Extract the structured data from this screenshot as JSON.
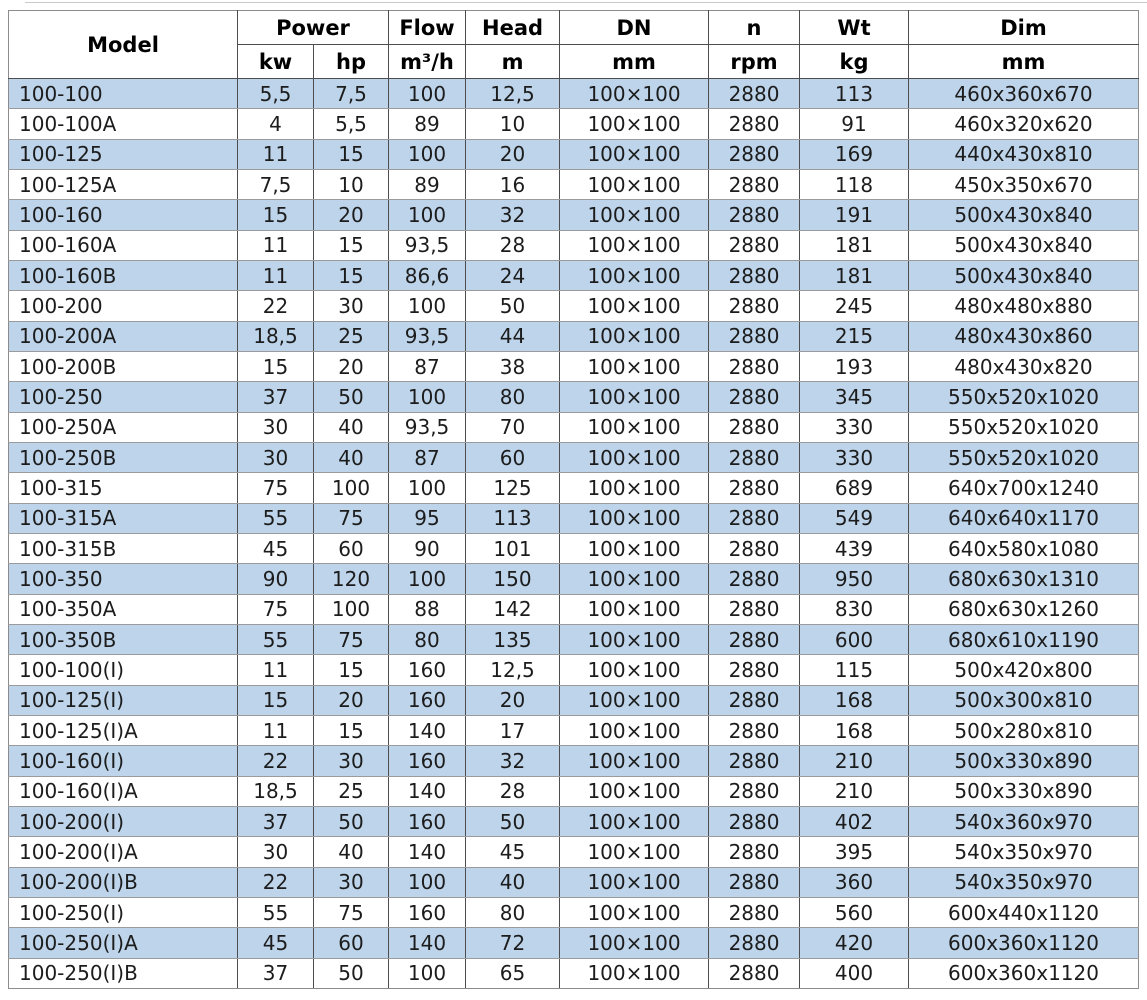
{
  "colors": {
    "row_alt": "#bdd4ea",
    "row_base": "#ffffff",
    "vertical_border": "#4d4d4d",
    "horizontal_border": "#9b9b9b",
    "outer_border": "#8c8c8c",
    "text": "#1c1c1c"
  },
  "table": {
    "header": {
      "model": "Model",
      "power_group": "Power",
      "power_kw_unit": "kw",
      "power_hp_unit": "hp",
      "flow": "Flow",
      "flow_unit": "m³/h",
      "head": "Head",
      "head_unit": "m",
      "dn": "DN",
      "dn_unit": "mm",
      "speed": "n",
      "speed_unit": "rpm",
      "weight": "Wt",
      "weight_unit": "kg",
      "dim": "Dim",
      "dim_unit": "mm"
    },
    "rows": [
      [
        "100-100",
        "5,5",
        "7,5",
        "100",
        "12,5",
        "100×100",
        "2880",
        "113",
        "460x360x670"
      ],
      [
        "100-100A",
        "4",
        "5,5",
        "89",
        "10",
        "100×100",
        "2880",
        "91",
        "460x320x620"
      ],
      [
        "100-125",
        "11",
        "15",
        "100",
        "20",
        "100×100",
        "2880",
        "169",
        "440x430x810"
      ],
      [
        "100-125A",
        "7,5",
        "10",
        "89",
        "16",
        "100×100",
        "2880",
        "118",
        "450x350x670"
      ],
      [
        "100-160",
        "15",
        "20",
        "100",
        "32",
        "100×100",
        "2880",
        "191",
        "500x430x840"
      ],
      [
        "100-160A",
        "11",
        "15",
        "93,5",
        "28",
        "100×100",
        "2880",
        "181",
        "500x430x840"
      ],
      [
        "100-160B",
        "11",
        "15",
        "86,6",
        "24",
        "100×100",
        "2880",
        "181",
        "500x430x840"
      ],
      [
        "100-200",
        "22",
        "30",
        "100",
        "50",
        "100×100",
        "2880",
        "245",
        "480x480x880"
      ],
      [
        "100-200A",
        "18,5",
        "25",
        "93,5",
        "44",
        "100×100",
        "2880",
        "215",
        "480x430x860"
      ],
      [
        "100-200B",
        "15",
        "20",
        "87",
        "38",
        "100×100",
        "2880",
        "193",
        "480x430x820"
      ],
      [
        "100-250",
        "37",
        "50",
        "100",
        "80",
        "100×100",
        "2880",
        "345",
        "550x520x1020"
      ],
      [
        "100-250A",
        "30",
        "40",
        "93,5",
        "70",
        "100×100",
        "2880",
        "330",
        "550x520x1020"
      ],
      [
        "100-250B",
        "30",
        "40",
        "87",
        "60",
        "100×100",
        "2880",
        "330",
        "550x520x1020"
      ],
      [
        "100-315",
        "75",
        "100",
        "100",
        "125",
        "100×100",
        "2880",
        "689",
        "640x700x1240"
      ],
      [
        "100-315A",
        "55",
        "75",
        "95",
        "113",
        "100×100",
        "2880",
        "549",
        "640x640x1170"
      ],
      [
        "100-315B",
        "45",
        "60",
        "90",
        "101",
        "100×100",
        "2880",
        "439",
        "640x580x1080"
      ],
      [
        "100-350",
        "90",
        "120",
        "100",
        "150",
        "100×100",
        "2880",
        "950",
        "680x630x1310"
      ],
      [
        "100-350A",
        "75",
        "100",
        "88",
        "142",
        "100×100",
        "2880",
        "830",
        "680x630x1260"
      ],
      [
        "100-350B",
        "55",
        "75",
        "80",
        "135",
        "100×100",
        "2880",
        "600",
        "680x610x1190"
      ],
      [
        "100-100(I)",
        "11",
        "15",
        "160",
        "12,5",
        "100×100",
        "2880",
        "115",
        "500x420x800"
      ],
      [
        "100-125(I)",
        "15",
        "20",
        "160",
        "20",
        "100×100",
        "2880",
        "168",
        "500x300x810"
      ],
      [
        "100-125(I)A",
        "11",
        "15",
        "140",
        "17",
        "100×100",
        "2880",
        "168",
        "500x280x810"
      ],
      [
        "100-160(I)",
        "22",
        "30",
        "160",
        "32",
        "100×100",
        "2880",
        "210",
        "500x330x890"
      ],
      [
        "100-160(I)A",
        "18,5",
        "25",
        "140",
        "28",
        "100×100",
        "2880",
        "210",
        "500x330x890"
      ],
      [
        "100-200(I)",
        "37",
        "50",
        "160",
        "50",
        "100×100",
        "2880",
        "402",
        "540x360x970"
      ],
      [
        "100-200(I)A",
        "30",
        "40",
        "140",
        "45",
        "100×100",
        "2880",
        "395",
        "540x350x970"
      ],
      [
        "100-200(I)B",
        "22",
        "30",
        "100",
        "40",
        "100×100",
        "2880",
        "360",
        "540x350x970"
      ],
      [
        "100-250(I)",
        "55",
        "75",
        "160",
        "80",
        "100×100",
        "2880",
        "560",
        "600x440x1120"
      ],
      [
        "100-250(I)A",
        "45",
        "60",
        "140",
        "72",
        "100×100",
        "2880",
        "420",
        "600x360x1120"
      ],
      [
        "100-250(I)B",
        "37",
        "50",
        "100",
        "65",
        "100×100",
        "2880",
        "400",
        "600x360x1120"
      ]
    ]
  }
}
